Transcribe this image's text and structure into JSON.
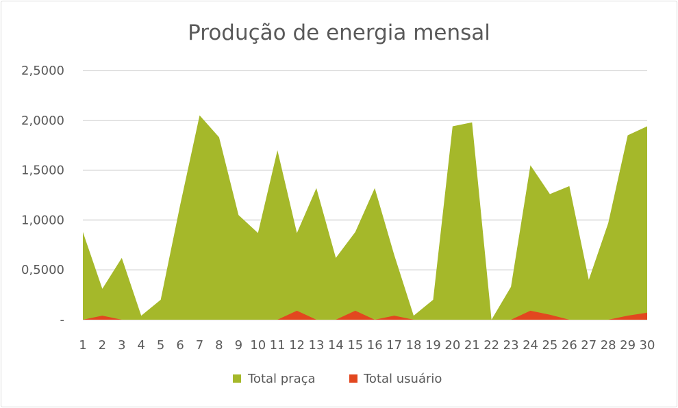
{
  "chart_data": {
    "type": "area",
    "title": "Produção de energia mensal",
    "xlabel": "",
    "ylabel": "",
    "x": [
      "1",
      "2",
      "3",
      "4",
      "5",
      "6",
      "7",
      "8",
      "9",
      "10",
      "11",
      "12",
      "13",
      "14",
      "15",
      "16",
      "17",
      "18",
      "19",
      "20",
      "21",
      "22",
      "23",
      "24",
      "25",
      "26",
      "27",
      "28",
      "29",
      "30"
    ],
    "ylim": [
      0,
      2.5
    ],
    "yticks": [
      0,
      0.5,
      1,
      1.5,
      2,
      2.5
    ],
    "ytick_labels": [
      "-",
      "0,5000",
      "1,0000",
      "1,5000",
      "2,0000",
      "2,5000"
    ],
    "grid": true,
    "legend_position": "bottom",
    "series": [
      {
        "name": "Total praça",
        "color": "#a5b82a",
        "values": [
          0.88,
          0.31,
          0.62,
          0.04,
          0.2,
          1.15,
          2.05,
          1.83,
          1.05,
          0.87,
          1.7,
          0.87,
          1.32,
          0.62,
          0.88,
          1.32,
          0.65,
          0.04,
          0.2,
          1.94,
          1.98,
          0.0,
          0.33,
          1.55,
          1.26,
          1.34,
          0.4,
          0.97,
          1.85,
          1.94
        ]
      },
      {
        "name": "Total usuário",
        "color": "#e2471f",
        "values": [
          0,
          0.04,
          0,
          0,
          0,
          0,
          0,
          0,
          0,
          0,
          0,
          0.09,
          0,
          0,
          0.09,
          0,
          0.04,
          0,
          0,
          0,
          0,
          0,
          0,
          0.09,
          0.05,
          0,
          0,
          0,
          0.04,
          0.07
        ]
      }
    ]
  }
}
